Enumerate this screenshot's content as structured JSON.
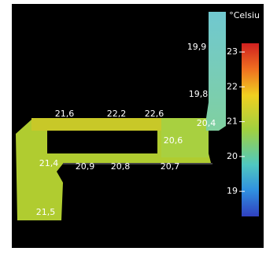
{
  "colorbar": {
    "title": "°Celsiu",
    "ticks": [
      23,
      22,
      21,
      20,
      19
    ],
    "range": [
      18.28,
      23.25
    ]
  },
  "labels": [
    "19,9",
    "19,8",
    "21,6",
    "22,2",
    "22,6",
    "20,4",
    "20,6",
    "21,4",
    "20,9",
    "20,8",
    "20,7",
    "21,5"
  ]
}
